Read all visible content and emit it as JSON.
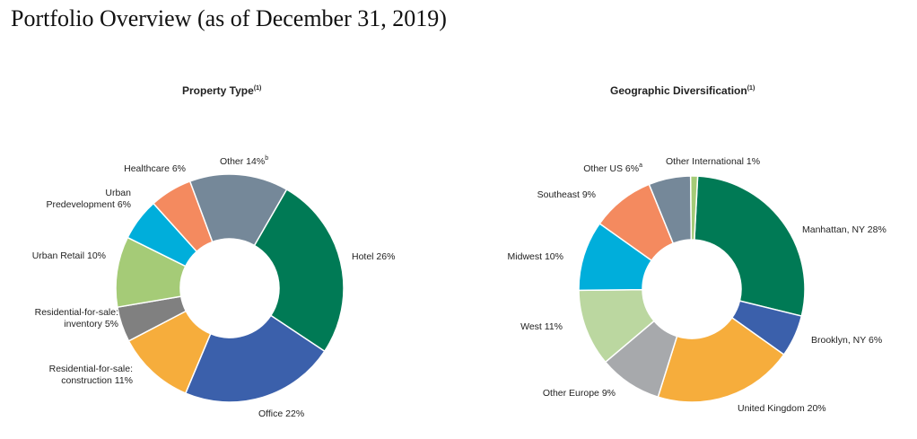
{
  "page": {
    "title": "Portfolio Overview (as of December 31, 2019)"
  },
  "chart_data": [
    {
      "type": "pie",
      "title": "Property Type",
      "title_note": "(1)",
      "donut": true,
      "slices": [
        {
          "label": "Hotel 26%",
          "value": 26,
          "color": "#007a55"
        },
        {
          "label": "Office 22%",
          "value": 22,
          "color": "#3b60ab"
        },
        {
          "label": "Residential-for-sale: construction 11%",
          "value": 11,
          "color": "#f6ad3c"
        },
        {
          "label": "Residential-for-sale: inventory 5%",
          "value": 5,
          "color": "#808080"
        },
        {
          "label": "Urban Retail 10%",
          "value": 10,
          "color": "#a5cb77"
        },
        {
          "label": "Urban Predevelopment 6%",
          "value": 6,
          "color": "#00aedb"
        },
        {
          "label": "Healthcare 6%",
          "value": 6,
          "color": "#f48a5f"
        },
        {
          "label": "Other 14%",
          "label_note": "b",
          "value": 14,
          "color": "#758899"
        }
      ]
    },
    {
      "type": "pie",
      "title": "Geographic Diversification",
      "title_note": "(1)",
      "donut": true,
      "slices": [
        {
          "label": "Manhattan, NY 28%",
          "value": 28,
          "color": "#007a55"
        },
        {
          "label": "Brooklyn, NY 6%",
          "value": 6,
          "color": "#3b60ab"
        },
        {
          "label": "United Kingdom 20%",
          "value": 20,
          "color": "#f6ad3c"
        },
        {
          "label": "Other Europe 9%",
          "value": 9,
          "color": "#a7a9ac"
        },
        {
          "label": "West 11%",
          "value": 11,
          "color": "#bbd7a0"
        },
        {
          "label": "Midwest 10%",
          "value": 10,
          "color": "#00aedb"
        },
        {
          "label": "Southeast 9%",
          "value": 9,
          "color": "#f48a5f"
        },
        {
          "label": "Other US 6%",
          "label_note": "a",
          "value": 6,
          "color": "#758899"
        },
        {
          "label": "Other International 1%",
          "value": 1,
          "color": "#a5cb77"
        }
      ]
    }
  ]
}
